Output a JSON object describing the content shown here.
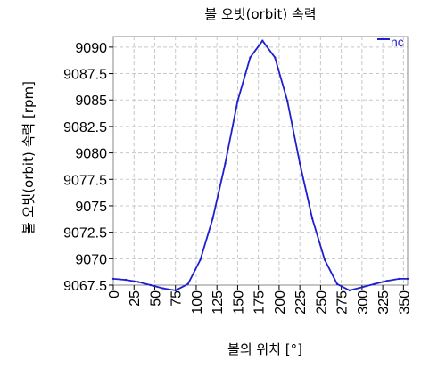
{
  "chart_data": {
    "type": "line",
    "title": "볼 오빗(orbit) 속력",
    "xlabel": "볼의 위치 [°]",
    "ylabel": "볼 오빗(orbit) 속력 [rpm]",
    "xlim": [
      0,
      355
    ],
    "ylim": [
      9067.5,
      9091
    ],
    "x_ticks": [
      "0",
      "25",
      "50",
      "75",
      "100",
      "125",
      "150",
      "175",
      "200",
      "225",
      "250",
      "275",
      "300",
      "325",
      "350"
    ],
    "y_ticks": [
      "9067.5",
      "9070",
      "9072.5",
      "9075",
      "9077.5",
      "9080",
      "9082.5",
      "9085",
      "9087.5",
      "9090"
    ],
    "grid": true,
    "legend_position": "top-right",
    "series": [
      {
        "name": "nc",
        "color": "#1f1fd0",
        "x": [
          0,
          15,
          30,
          45,
          60,
          75,
          90,
          105,
          120,
          135,
          150,
          165,
          180,
          195,
          210,
          225,
          240,
          255,
          270,
          285,
          300,
          315,
          330,
          345,
          355
        ],
        "y": [
          9068.1,
          9068.0,
          9067.8,
          9067.5,
          9067.2,
          9067.0,
          9067.6,
          9069.9,
          9073.8,
          9079.0,
          9084.9,
          9089.0,
          9090.6,
          9089.0,
          9084.9,
          9079.0,
          9073.8,
          9069.9,
          9067.6,
          9067.0,
          9067.3,
          9067.6,
          9067.9,
          9068.1,
          9068.1
        ]
      }
    ]
  }
}
